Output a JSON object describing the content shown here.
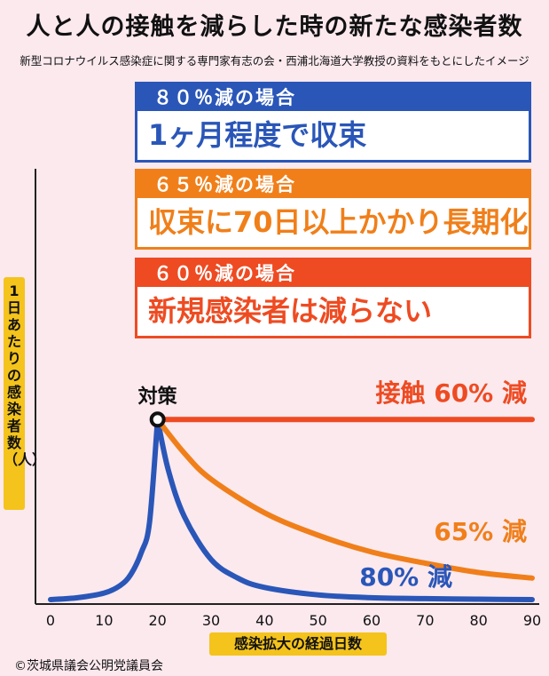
{
  "title": "人と人の接触を減らした時の新たな感染者数",
  "subtitle": "新型コロナウイルス感染症に関する専門家有志の会・西浦北海道大学教授の資料をもとにしたイメージ",
  "cards": [
    {
      "head": "８０％減の場合",
      "body": "1ヶ月程度で収束",
      "color": "#2a56b8"
    },
    {
      "head": "６５％減の場合",
      "body": "収束に70日以上かかり長期化",
      "color": "#f07f1a"
    },
    {
      "head": "６０％減の場合",
      "body": "新規感染者は減らない",
      "color": "#ee4b22"
    }
  ],
  "credit": "©茨城県議会公明党議員会",
  "chart_data": {
    "type": "line",
    "ylabel": "1日あたりの感染者数（人）",
    "xlabel": "感染拡大の経過日数",
    "xlim": [
      0,
      90
    ],
    "ylim": [
      0,
      100
    ],
    "xticks": [
      0,
      10,
      20,
      30,
      40,
      50,
      60,
      70,
      80,
      90
    ],
    "intervention_label": "対策",
    "intervention_x": 20,
    "grid": false,
    "series": [
      {
        "name": "接触 60% 減",
        "color": "#ee4b22",
        "x": [
          20,
          30,
          40,
          50,
          60,
          70,
          80,
          90
        ],
        "y": [
          97,
          97,
          97,
          97,
          97,
          97,
          97,
          97
        ]
      },
      {
        "name": "65% 減",
        "color": "#f07f1a",
        "x": [
          20,
          25,
          30,
          40,
          50,
          60,
          70,
          80,
          90
        ],
        "y": [
          97,
          79,
          65,
          47,
          35,
          26,
          20,
          15,
          12
        ]
      },
      {
        "name": "80% 減",
        "color": "#2a56b8",
        "x": [
          20,
          22,
          25,
          30,
          35,
          40,
          50,
          60,
          70,
          80,
          90
        ],
        "y": [
          97,
          70,
          45,
          22,
          12,
          7,
          3,
          1.5,
          1,
          0.7,
          0.5
        ]
      }
    ],
    "rise": {
      "color": "#2a56b8",
      "x": [
        0,
        5,
        10,
        13,
        15,
        17,
        18.5,
        20
      ],
      "y": [
        0.5,
        1.5,
        4,
        8,
        14,
        26,
        42,
        97
      ]
    }
  }
}
